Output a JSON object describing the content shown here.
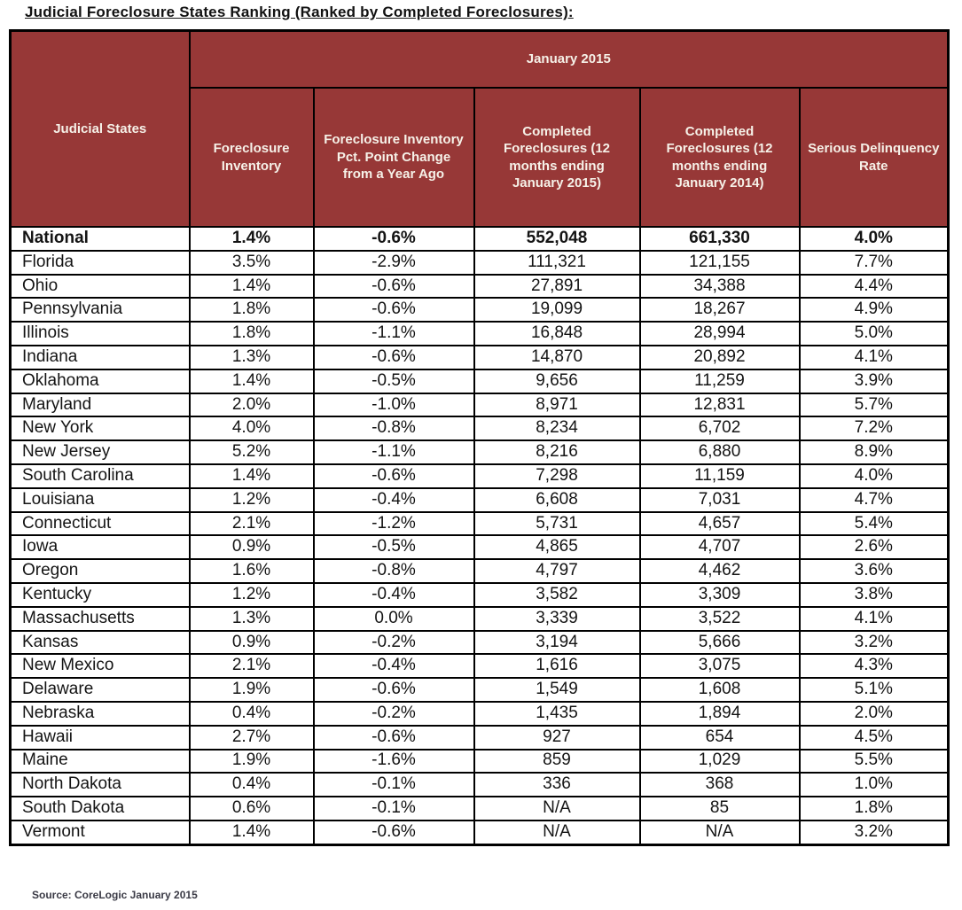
{
  "page": {
    "title": "Judicial Foreclosure States Ranking (Ranked by Completed Foreclosures):",
    "source_note": "Source: CoreLogic January 2015"
  },
  "colors": {
    "header_bg": "#973837",
    "header_text": "#f6f1e8",
    "border": "#000000",
    "body_text": "#141414",
    "background": "#ffffff"
  },
  "chart_data": {
    "type": "table",
    "title": "Judicial Foreclosure States Ranking (Ranked by Completed Foreclosures)",
    "corner_header": "Judicial States",
    "group_header": "January 2015",
    "columns": [
      "Foreclosure Inventory",
      "Foreclosure Inventory Pct. Point Change from a Year Ago",
      "Completed Foreclosures (12 months ending January 2015)",
      "Completed Foreclosures (12 months ending January 2014)",
      "Serious Delinquency Rate"
    ],
    "bold_row_label": "National",
    "rows": [
      [
        "National",
        "1.4%",
        "-0.6%",
        "552,048",
        "661,330",
        "4.0%"
      ],
      [
        "Florida",
        "3.5%",
        "-2.9%",
        "111,321",
        "121,155",
        "7.7%"
      ],
      [
        "Ohio",
        "1.4%",
        "-0.6%",
        "27,891",
        "34,388",
        "4.4%"
      ],
      [
        "Pennsylvania",
        "1.8%",
        "-0.6%",
        "19,099",
        "18,267",
        "4.9%"
      ],
      [
        "Illinois",
        "1.8%",
        "-1.1%",
        "16,848",
        "28,994",
        "5.0%"
      ],
      [
        "Indiana",
        "1.3%",
        "-0.6%",
        "14,870",
        "20,892",
        "4.1%"
      ],
      [
        "Oklahoma",
        "1.4%",
        "-0.5%",
        "9,656",
        "11,259",
        "3.9%"
      ],
      [
        "Maryland",
        "2.0%",
        "-1.0%",
        "8,971",
        "12,831",
        "5.7%"
      ],
      [
        "New York",
        "4.0%",
        "-0.8%",
        "8,234",
        "6,702",
        "7.2%"
      ],
      [
        "New Jersey",
        "5.2%",
        "-1.1%",
        "8,216",
        "6,880",
        "8.9%"
      ],
      [
        "South Carolina",
        "1.4%",
        "-0.6%",
        "7,298",
        "11,159",
        "4.0%"
      ],
      [
        "Louisiana",
        "1.2%",
        "-0.4%",
        "6,608",
        "7,031",
        "4.7%"
      ],
      [
        "Connecticut",
        "2.1%",
        "-1.2%",
        "5,731",
        "4,657",
        "5.4%"
      ],
      [
        "Iowa",
        "0.9%",
        "-0.5%",
        "4,865",
        "4,707",
        "2.6%"
      ],
      [
        "Oregon",
        "1.6%",
        "-0.8%",
        "4,797",
        "4,462",
        "3.6%"
      ],
      [
        "Kentucky",
        "1.2%",
        "-0.4%",
        "3,582",
        "3,309",
        "3.8%"
      ],
      [
        "Massachusetts",
        "1.3%",
        "0.0%",
        "3,339",
        "3,522",
        "4.1%"
      ],
      [
        "Kansas",
        "0.9%",
        "-0.2%",
        "3,194",
        "5,666",
        "3.2%"
      ],
      [
        "New Mexico",
        "2.1%",
        "-0.4%",
        "1,616",
        "3,075",
        "4.3%"
      ],
      [
        "Delaware",
        "1.9%",
        "-0.6%",
        "1,549",
        "1,608",
        "5.1%"
      ],
      [
        "Nebraska",
        "0.4%",
        "-0.2%",
        "1,435",
        "1,894",
        "2.0%"
      ],
      [
        "Hawaii",
        "2.7%",
        "-0.6%",
        "927",
        "654",
        "4.5%"
      ],
      [
        "Maine",
        "1.9%",
        "-1.6%",
        "859",
        "1,029",
        "5.5%"
      ],
      [
        "North Dakota",
        "0.4%",
        "-0.1%",
        "336",
        "368",
        "1.0%"
      ],
      [
        "South Dakota",
        "0.6%",
        "-0.1%",
        "N/A",
        "85",
        "1.8%"
      ],
      [
        "Vermont",
        "1.4%",
        "-0.6%",
        "N/A",
        "N/A",
        "3.2%"
      ]
    ]
  }
}
